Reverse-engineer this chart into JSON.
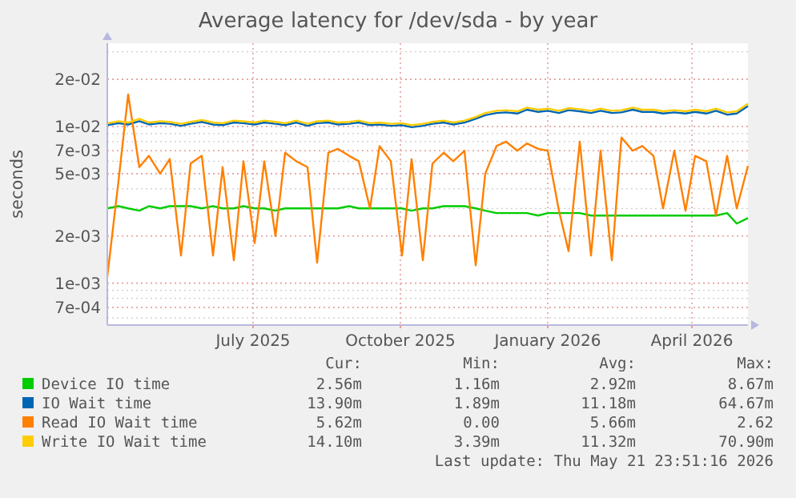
{
  "chart_data": {
    "type": "line",
    "title": "Average latency for /dev/sda - by year",
    "ylabel": "seconds",
    "log": "y",
    "grid": true,
    "legend": "bottom",
    "marker": "none",
    "line_style": "solid",
    "xlim": [
      "2025-04-16",
      "2026-05-21"
    ],
    "xticks": [
      {
        "value": "2025-07-16",
        "label": "July 2025"
      },
      {
        "value": "2025-10-16",
        "label": "October 2025"
      },
      {
        "value": "2026-01-16",
        "label": "January 2026"
      },
      {
        "value": "2026-04-16",
        "label": "April 2026"
      }
    ],
    "ylim": [
      0.00054,
      0.034
    ],
    "yticks": [
      {
        "value": 0.0007,
        "label": "7e-04"
      },
      {
        "value": 0.001,
        "label": "1e-03"
      },
      {
        "value": 0.002,
        "label": "2e-03"
      },
      {
        "value": 0.005,
        "label": "5e-03"
      },
      {
        "value": 0.007,
        "label": "7e-03"
      },
      {
        "value": 0.01,
        "label": "1e-02"
      },
      {
        "value": 0.02,
        "label": "2e-02"
      }
    ],
    "x": [
      "2025-04-16",
      "2025-04-23",
      "2025-04-29",
      "2025-05-06",
      "2025-05-12",
      "2025-05-19",
      "2025-05-25",
      "2025-06-01",
      "2025-06-07",
      "2025-06-14",
      "2025-06-21",
      "2025-06-27",
      "2025-07-04",
      "2025-07-10",
      "2025-07-17",
      "2025-07-23",
      "2025-07-30",
      "2025-08-05",
      "2025-08-12",
      "2025-08-19",
      "2025-08-25",
      "2025-09-01",
      "2025-09-07",
      "2025-09-14",
      "2025-09-20",
      "2025-09-27",
      "2025-10-03",
      "2025-10-10",
      "2025-10-17",
      "2025-10-23",
      "2025-10-30",
      "2025-11-05",
      "2025-11-12",
      "2025-11-18",
      "2025-11-25",
      "2025-12-02",
      "2025-12-08",
      "2025-12-15",
      "2025-12-21",
      "2025-12-28",
      "2026-01-03",
      "2026-01-10",
      "2026-01-16",
      "2026-01-23",
      "2026-01-29",
      "2026-02-05",
      "2026-02-12",
      "2026-02-18",
      "2026-02-25",
      "2026-03-03",
      "2026-03-10",
      "2026-03-16",
      "2026-03-23",
      "2026-03-29",
      "2026-04-05",
      "2026-04-12",
      "2026-04-18",
      "2026-04-25",
      "2026-05-01",
      "2026-05-08",
      "2026-05-14",
      "2026-05-21"
    ],
    "series": [
      {
        "name": "Device IO time",
        "color": "#00cc00",
        "values": [
          0.003,
          0.0031,
          0.003,
          0.0029,
          0.0031,
          0.003,
          0.0031,
          0.0031,
          0.0031,
          0.003,
          0.0031,
          0.003,
          0.003,
          0.0031,
          0.003,
          0.003,
          0.0029,
          0.003,
          0.003,
          0.003,
          0.003,
          0.003,
          0.003,
          0.0031,
          0.003,
          0.003,
          0.003,
          0.003,
          0.003,
          0.0029,
          0.003,
          0.003,
          0.0031,
          0.0031,
          0.0031,
          0.003,
          0.0029,
          0.0028,
          0.0028,
          0.0028,
          0.0028,
          0.0027,
          0.0028,
          0.0028,
          0.0028,
          0.0028,
          0.0027,
          0.0027,
          0.0027,
          0.0027,
          0.0027,
          0.0027,
          0.0027,
          0.0027,
          0.0027,
          0.0027,
          0.0027,
          0.0027,
          0.0027,
          0.0028,
          0.0024,
          0.0026
        ]
      },
      {
        "name": "IO Wait time",
        "color": "#0066b3",
        "values": [
          0.0102,
          0.0105,
          0.0103,
          0.0108,
          0.0103,
          0.0105,
          0.0104,
          0.0101,
          0.0104,
          0.0107,
          0.0103,
          0.0102,
          0.0106,
          0.0105,
          0.0103,
          0.0106,
          0.0104,
          0.0102,
          0.0106,
          0.0101,
          0.0105,
          0.0106,
          0.0103,
          0.0104,
          0.0106,
          0.0102,
          0.0103,
          0.0101,
          0.0102,
          0.0099,
          0.0101,
          0.0104,
          0.0106,
          0.0103,
          0.0106,
          0.0112,
          0.0118,
          0.0122,
          0.0123,
          0.0121,
          0.0128,
          0.0124,
          0.0126,
          0.0122,
          0.0127,
          0.0125,
          0.0122,
          0.0126,
          0.0122,
          0.0123,
          0.0128,
          0.0124,
          0.0124,
          0.0121,
          0.0123,
          0.0121,
          0.0124,
          0.0121,
          0.0126,
          0.0119,
          0.0121,
          0.0135
        ]
      },
      {
        "name": "Read IO Wait time",
        "color": "#ff8000",
        "values": [
          0.0011,
          0.0045,
          0.016,
          0.0055,
          0.0065,
          0.005,
          0.0062,
          0.0015,
          0.0058,
          0.0065,
          0.0015,
          0.0055,
          0.0014,
          0.006,
          0.0018,
          0.006,
          0.002,
          0.0068,
          0.006,
          0.0055,
          0.00135,
          0.0068,
          0.0072,
          0.0065,
          0.006,
          0.003,
          0.0075,
          0.006,
          0.0015,
          0.0062,
          0.0014,
          0.0058,
          0.0068,
          0.006,
          0.007,
          0.0013,
          0.005,
          0.0075,
          0.008,
          0.007,
          0.0078,
          0.0072,
          0.007,
          0.0029,
          0.0016,
          0.008,
          0.0015,
          0.007,
          0.0014,
          0.0085,
          0.007,
          0.0075,
          0.0065,
          0.003,
          0.007,
          0.0029,
          0.0065,
          0.006,
          0.0027,
          0.0065,
          0.003,
          0.0056
        ]
      },
      {
        "name": "Write IO Wait time",
        "color": "#ffcc00",
        "values": [
          0.0105,
          0.0108,
          0.0106,
          0.0112,
          0.0106,
          0.0108,
          0.0107,
          0.0104,
          0.0107,
          0.011,
          0.0106,
          0.0105,
          0.0109,
          0.0108,
          0.0106,
          0.0109,
          0.0107,
          0.0105,
          0.0109,
          0.0104,
          0.0108,
          0.0109,
          0.0106,
          0.0107,
          0.0109,
          0.0105,
          0.0106,
          0.0104,
          0.0105,
          0.0102,
          0.0104,
          0.0107,
          0.0109,
          0.0106,
          0.0109,
          0.0115,
          0.0122,
          0.0126,
          0.0127,
          0.0125,
          0.0132,
          0.0128,
          0.013,
          0.0126,
          0.0131,
          0.0129,
          0.0126,
          0.013,
          0.0126,
          0.0127,
          0.0132,
          0.0128,
          0.0128,
          0.0125,
          0.0127,
          0.0125,
          0.0128,
          0.0125,
          0.013,
          0.0123,
          0.0125,
          0.014
        ]
      }
    ],
    "annotations": [
      "Cur:",
      "Min:",
      "Avg:",
      "Max:",
      "2.56m",
      "1.16m",
      "2.92m",
      "8.67m",
      "13.90m",
      "1.89m",
      "11.18m",
      "64.67m",
      "5.62m",
      "0.00",
      "5.66m",
      "2.62",
      "14.10m",
      "3.39m",
      "11.32m",
      "70.90m",
      "Last update: Thu May 21 23:51:16 2026"
    ]
  }
}
